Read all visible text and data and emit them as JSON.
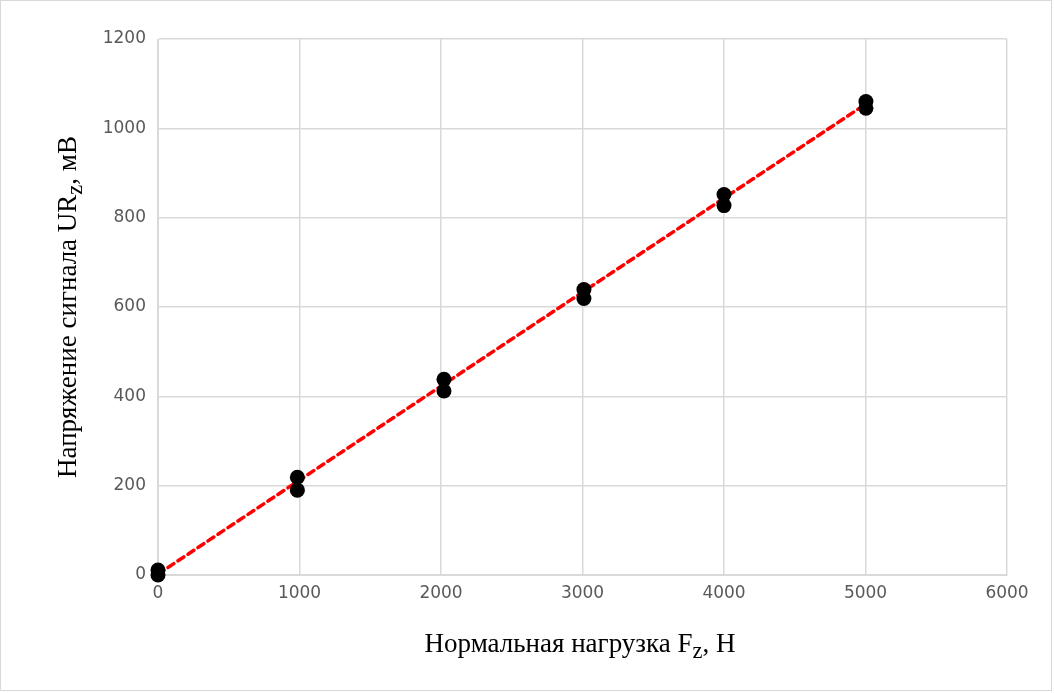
{
  "chart_data": {
    "type": "scatter",
    "xlabel": "Нормальная нагрузка F$_{z}$, Н",
    "ylabel": "Напряжение сигнала UR$_{z}$, мВ",
    "xlim": [
      0,
      6000
    ],
    "xticks": [
      0,
      1000,
      2000,
      3000,
      4000,
      5000,
      6000
    ],
    "ylim": [
      0,
      1200
    ],
    "yticks": [
      0,
      200,
      400,
      600,
      800,
      1000,
      1200
    ],
    "grid": true,
    "legend": false,
    "marker": "circle",
    "series": [
      {
        "color": "#000000",
        "x": [
          0,
          0,
          985,
          985,
          2021,
          2021,
          3010,
          3010,
          4000,
          4000,
          5003,
          5003
        ],
        "values": [
          0,
          11,
          190,
          219,
          412,
          438,
          619,
          639,
          827,
          852,
          1045,
          1060
        ]
      },
      {
        "type": "line",
        "color": "#ff0000",
        "line_style": "dashed",
        "marker": "none",
        "x": [
          0,
          5000
        ],
        "values": [
          2,
          1054
        ]
      }
    ]
  }
}
